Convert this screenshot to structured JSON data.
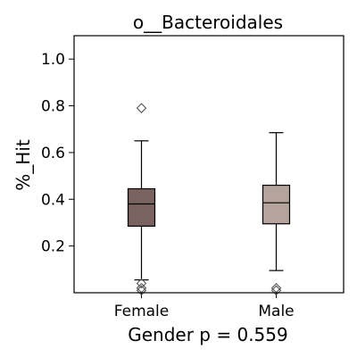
{
  "chart_data": {
    "type": "box",
    "title": "o__Bacteroidales",
    "ylabel": "%_Hit",
    "xlabel": "Gender p = 0.559",
    "ylim": [
      0.0,
      1.1
    ],
    "yticks": [
      0.2,
      0.4,
      0.6,
      0.8,
      1.0
    ],
    "yticklabels": [
      "0.2",
      "0.4",
      "0.6",
      "0.8",
      "1.0"
    ],
    "grid": false,
    "categories": [
      "Female",
      "Male"
    ],
    "boxes": [
      {
        "label": "Female",
        "color": "#7a6260",
        "whisker_low": 0.055,
        "q1": 0.285,
        "median": 0.38,
        "q3": 0.445,
        "whisker_high": 0.65,
        "outliers": [
          0.79,
          0.04,
          0.02,
          0.01
        ]
      },
      {
        "label": "Male",
        "color": "#b5a49b",
        "whisker_low": 0.095,
        "q1": 0.295,
        "median": 0.385,
        "q3": 0.46,
        "whisker_high": 0.685,
        "outliers": [
          0.02,
          0.01
        ]
      }
    ]
  }
}
